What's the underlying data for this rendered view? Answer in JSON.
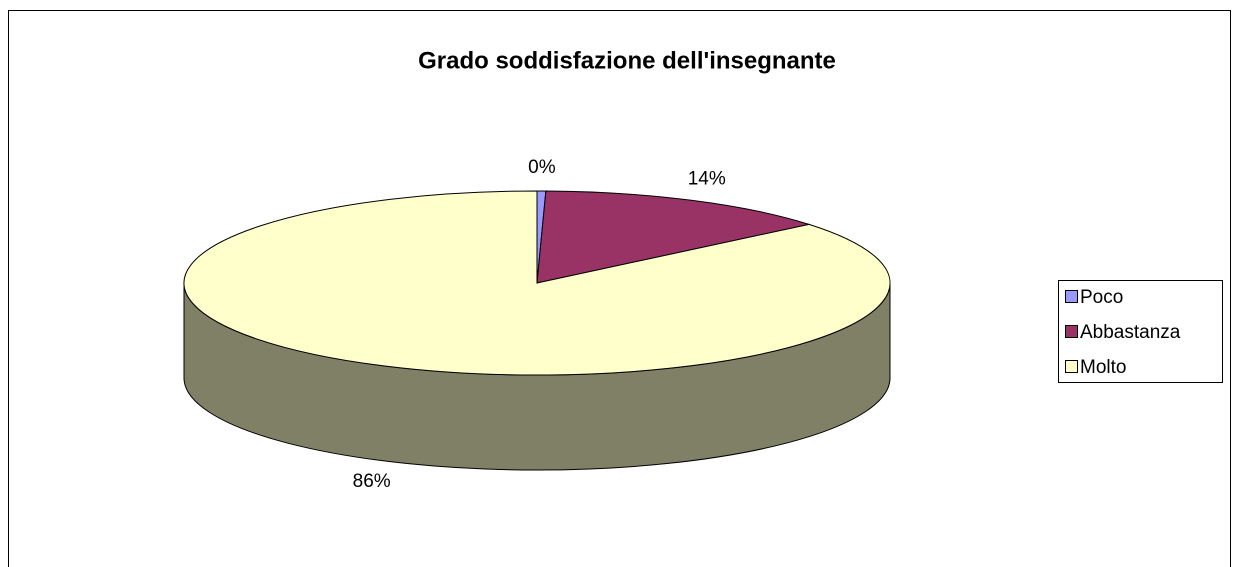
{
  "chart_data": {
    "type": "pie",
    "title": "Grado soddisfazione dell'insegnante",
    "categories": [
      "Poco",
      "Abbastanza",
      "Molto"
    ],
    "values": [
      0.4,
      13.6,
      86
    ],
    "value_labels": [
      "0%",
      "14%",
      "86%"
    ],
    "colors": [
      "#9999ff",
      "#993366",
      "#ffffcc"
    ],
    "legend": "right"
  }
}
